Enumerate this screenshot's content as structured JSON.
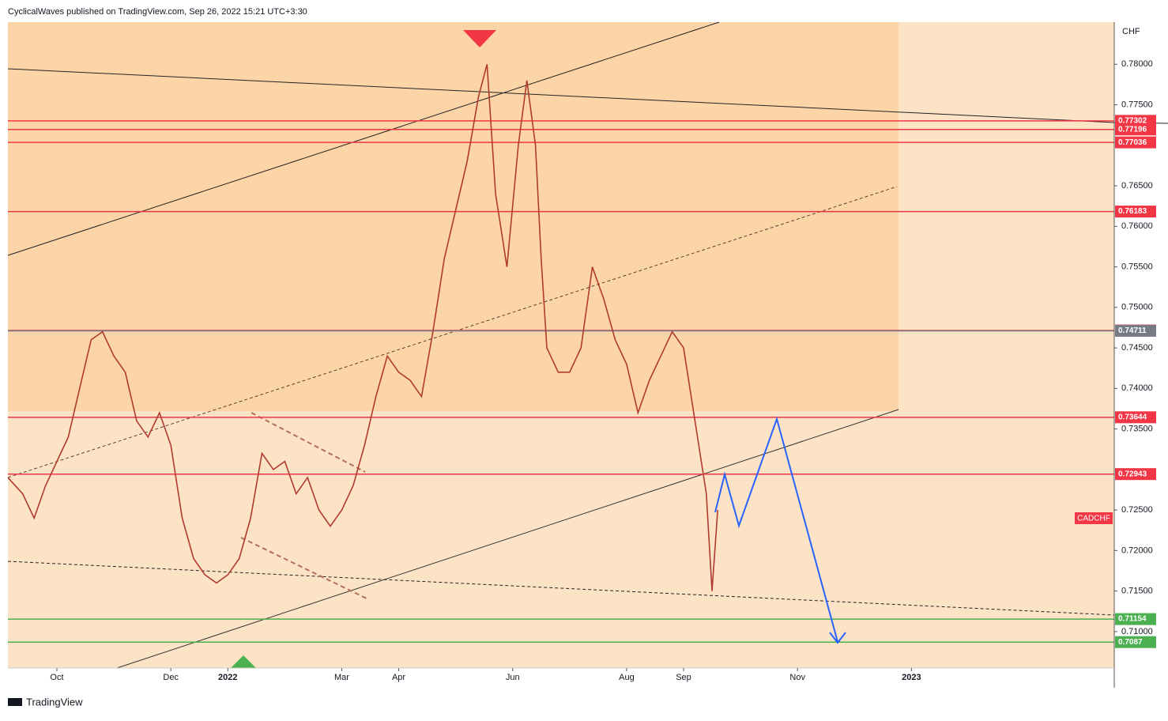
{
  "chart_data": {
    "type": "line",
    "header": "CyclicalWaves published on TradingView.com, Sep 26, 2022 15:21 UTC+3:30",
    "footer": "TradingView",
    "unit": "CHF",
    "symbol": "CADCHF",
    "xlim": [
      -0.86,
      18.56
    ],
    "xticks": [
      {
        "value": 0,
        "label": "Oct"
      },
      {
        "value": 2,
        "label": "Dec"
      },
      {
        "value": 3,
        "label": "2022"
      },
      {
        "value": 5,
        "label": "Mar"
      },
      {
        "value": 6,
        "label": "Apr"
      },
      {
        "value": 8,
        "label": "Jun"
      },
      {
        "value": 10,
        "label": "Aug"
      },
      {
        "value": 11,
        "label": "Sep"
      },
      {
        "value": 13,
        "label": "Nov"
      },
      {
        "value": 15,
        "label": "2023"
      }
    ],
    "ylim": [
      0.7055,
      0.7852
    ],
    "yticks": [
      {
        "value": 0.78,
        "label": "0.78000"
      },
      {
        "value": 0.775,
        "label": "0.77500"
      },
      {
        "value": 0.765,
        "label": "0.76500"
      },
      {
        "value": 0.76,
        "label": "0.76000"
      },
      {
        "value": 0.755,
        "label": "0.75500"
      },
      {
        "value": 0.75,
        "label": "0.75000"
      },
      {
        "value": 0.745,
        "label": "0.74500"
      },
      {
        "value": 0.74,
        "label": "0.74000"
      },
      {
        "value": 0.735,
        "label": "0.73500"
      },
      {
        "value": 0.725,
        "label": "0.72500"
      },
      {
        "value": 0.72,
        "label": "0.72000"
      },
      {
        "value": 0.715,
        "label": "0.71500"
      },
      {
        "value": 0.71,
        "label": "0.71000"
      }
    ],
    "series": [
      {
        "name": "CADCHF",
        "color": "#b03a2e",
        "x": [
          -0.86,
          -0.6,
          -0.4,
          -0.2,
          0,
          0.2,
          0.4,
          0.6,
          0.8,
          1.0,
          1.2,
          1.4,
          1.6,
          1.8,
          2.0,
          2.2,
          2.4,
          2.6,
          2.8,
          3.0,
          3.2,
          3.4,
          3.6,
          3.8,
          4.0,
          4.2,
          4.4,
          4.6,
          4.8,
          5.0,
          5.2,
          5.4,
          5.6,
          5.8,
          6.0,
          6.2,
          6.4,
          6.6,
          6.8,
          7.0,
          7.2,
          7.4,
          7.55,
          7.7,
          7.9,
          8.1,
          8.25,
          8.4,
          8.5,
          8.6,
          8.8,
          9.0,
          9.2,
          9.4,
          9.6,
          9.8,
          10.0,
          10.2,
          10.4,
          10.6,
          10.8,
          11.0,
          11.2,
          11.4,
          11.5,
          11.6
        ],
        "values": [
          0.729,
          0.727,
          0.724,
          0.728,
          0.731,
          0.734,
          0.74,
          0.746,
          0.747,
          0.744,
          0.742,
          0.736,
          0.734,
          0.737,
          0.733,
          0.724,
          0.719,
          0.717,
          0.716,
          0.717,
          0.719,
          0.724,
          0.732,
          0.73,
          0.731,
          0.727,
          0.729,
          0.725,
          0.723,
          0.725,
          0.728,
          0.733,
          0.739,
          0.744,
          0.742,
          0.741,
          0.739,
          0.747,
          0.756,
          0.762,
          0.768,
          0.776,
          0.78,
          0.764,
          0.755,
          0.77,
          0.778,
          0.77,
          0.756,
          0.745,
          0.742,
          0.742,
          0.745,
          0.755,
          0.751,
          0.746,
          0.743,
          0.737,
          0.741,
          0.744,
          0.747,
          0.745,
          0.736,
          0.727,
          0.715,
          0.725
        ]
      }
    ],
    "levels": [
      {
        "value": 0.77302,
        "color": "#f23645"
      },
      {
        "value": 0.77196,
        "color": "#f23645"
      },
      {
        "value": 0.77036,
        "color": "#f23645"
      },
      {
        "value": 0.76183,
        "color": "#f23645"
      },
      {
        "value": 0.74715,
        "color": "#f23645"
      },
      {
        "value": 0.74711,
        "color": "#787b86"
      },
      {
        "value": 0.73644,
        "color": "#f23645"
      },
      {
        "value": 0.72943,
        "color": "#f23645"
      },
      {
        "value": 0.71154,
        "color": "#4caf50"
      },
      {
        "value": 0.7087,
        "color": "#4caf50"
      }
    ]
  }
}
